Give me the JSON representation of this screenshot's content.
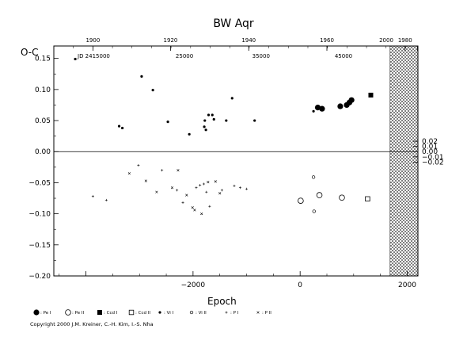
{
  "chart_data": {
    "type": "scatter",
    "title": "BW Aqr",
    "xlabel": "Epoch",
    "ylabel": "O-C",
    "xlim": [
      -4600,
      2200
    ],
    "ylim": [
      -0.2,
      0.17
    ],
    "right_ylim": [
      -0.025,
      0.025
    ],
    "grid": false,
    "x_ticks": [
      -4000,
      -2000,
      0,
      2000
    ],
    "x_tick_labels": [
      "",
      "−2000",
      "0",
      "2000"
    ],
    "y_ticks": [
      -0.2,
      -0.15,
      -0.1,
      -0.05,
      0.0,
      0.05,
      0.1,
      0.15
    ],
    "y_tick_labels": [
      "−0.20",
      "−0.15",
      "−0.10",
      "−0.05",
      "0.00",
      "0.05",
      "0.10",
      "0.15"
    ],
    "right_y_ticks": [
      -0.02,
      -0.01,
      0.0,
      0.01,
      0.02
    ],
    "right_y_tick_labels": [
      "−0.02",
      "−0.01",
      "0.00",
      "0.01",
      "0.02"
    ],
    "year_axis": {
      "labels": [
        "1900",
        "1920",
        "1940",
        "1960",
        "1980",
        "2000"
      ],
      "epochs": [
        -3870,
        -2420,
        -960,
        500,
        1960,
        3420
      ]
    },
    "jd_axis": {
      "prefix": "JD 2415000",
      "labels": [
        "25000",
        "35000",
        "45000"
      ],
      "epochs": [
        -2160,
        -730,
        810
      ]
    },
    "hatched_region": [
      1680,
      2200
    ],
    "legend": [
      {
        "marker": "filled-circle-large",
        "label": ": Pe I"
      },
      {
        "marker": "open-circle-large",
        "label": ": Pe II"
      },
      {
        "marker": "filled-square",
        "label": ": Ccd I"
      },
      {
        "marker": "open-square",
        "label": ": Ccd II"
      },
      {
        "marker": "filled-circle-small",
        "label": ": Vi I"
      },
      {
        "marker": "open-circle-small",
        "label": ": Vi II"
      },
      {
        "marker": "plus",
        "label": ": P I"
      },
      {
        "marker": "cross",
        "label": ": P II"
      }
    ],
    "series": [
      {
        "name": ": Pe I",
        "marker": "filled-circle-large",
        "x": [
          330,
          410,
          750,
          870,
          920,
          960
        ],
        "y": [
          0.071,
          0.069,
          0.073,
          0.075,
          0.079,
          0.083
        ]
      },
      {
        "name": ": Pe II",
        "marker": "open-circle-large",
        "x": [
          10,
          360,
          780
        ],
        "y": [
          -0.079,
          -0.07,
          -0.074
        ]
      },
      {
        "name": ": Ccd I",
        "marker": "filled-square",
        "x": [
          1320
        ],
        "y": [
          0.091
        ]
      },
      {
        "name": ": Ccd II",
        "marker": "open-square",
        "x": [
          1260
        ],
        "y": [
          -0.076
        ]
      },
      {
        "name": ": Vi I",
        "marker": "filled-circle-small",
        "x": [
          -4200,
          -2960,
          -3380,
          -3320,
          -2750,
          -2470,
          -2070,
          -1780,
          -1790,
          -1760,
          -1710,
          -1640,
          -1610,
          -1270,
          -1380,
          -850,
          250
        ],
        "y": [
          0.149,
          0.121,
          0.041,
          0.038,
          0.099,
          0.048,
          0.028,
          0.05,
          0.04,
          0.035,
          0.059,
          0.059,
          0.052,
          0.086,
          0.05,
          0.05,
          0.065
        ]
      },
      {
        "name": ": Vi II",
        "marker": "open-circle-small",
        "x": [
          250,
          260
        ],
        "y": [
          -0.041,
          -0.096
        ]
      },
      {
        "name": ": P I",
        "marker": "plus",
        "x": [
          -3870,
          -3620,
          -3020,
          -2580,
          -2300,
          -2190,
          -1940,
          -1870,
          -1800,
          -1750,
          -1690,
          -1460,
          -1230,
          -1120,
          -1000
        ],
        "y": [
          -0.072,
          -0.078,
          -0.022,
          -0.03,
          -0.062,
          -0.082,
          -0.058,
          -0.054,
          -0.052,
          -0.065,
          -0.088,
          -0.062,
          -0.055,
          -0.058,
          -0.06
        ]
      },
      {
        "name": ": P II",
        "marker": "cross",
        "x": [
          -3190,
          -2880,
          -2680,
          -2390,
          -2280,
          -2120,
          -2010,
          -1970,
          -1840,
          -1720,
          -1580,
          -1500
        ],
        "y": [
          -0.035,
          -0.047,
          -0.065,
          -0.058,
          -0.03,
          -0.07,
          -0.09,
          -0.094,
          -0.1,
          -0.049,
          -0.048,
          -0.067
        ]
      }
    ]
  },
  "copyright": "Copyright 2000 J.M. Kreiner, C.-H. Kim, I.-S. Nha"
}
